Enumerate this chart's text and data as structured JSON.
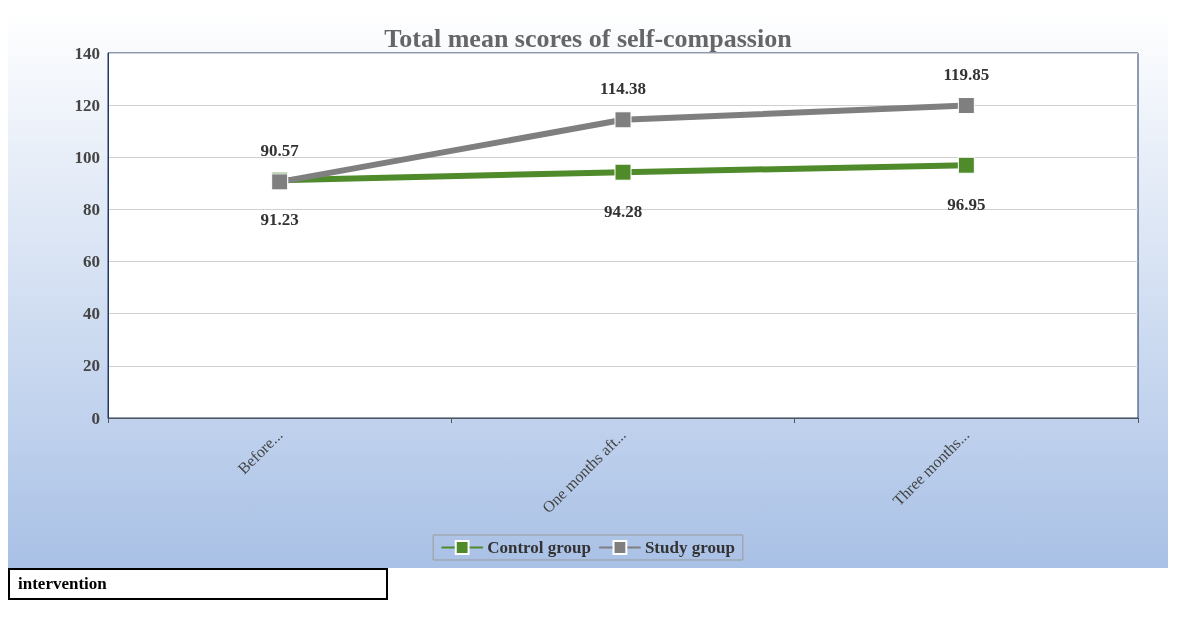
{
  "chart_data": {
    "type": "line",
    "title": "Total mean scores of self-compassion",
    "categories": [
      "Before...",
      "One months aft...",
      "Three months..."
    ],
    "series": [
      {
        "name": "Control group",
        "color": "#4f8a2b",
        "values": [
          91.23,
          94.28,
          96.95
        ]
      },
      {
        "name": "Study group",
        "color": "#7f7f7f",
        "values": [
          90.57,
          114.38,
          119.85
        ]
      }
    ],
    "ylim": [
      0,
      140
    ],
    "yticks": [
      0,
      20,
      40,
      60,
      80,
      100,
      120,
      140
    ],
    "grid": "y",
    "legend": "bottom",
    "marker": "square",
    "line_style": "solid",
    "data_labels": true,
    "annotations": [
      "intervention"
    ]
  }
}
